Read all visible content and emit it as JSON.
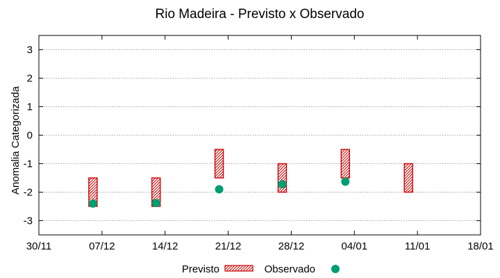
{
  "chart_data": {
    "type": "scatter",
    "title": "Rio Madeira - Previsto x Observado",
    "xlabel": "",
    "ylabel": "Anomalia Categorizada",
    "x_tick_labels": [
      "30/11",
      "07/12",
      "14/12",
      "21/12",
      "28/12",
      "04/01",
      "11/01",
      "18/01"
    ],
    "x_range_days": [
      0,
      49
    ],
    "y_ticks": [
      "3",
      "2",
      "1",
      "0",
      "-1",
      "-2",
      "-3"
    ],
    "y_tick_values": [
      3,
      2,
      1,
      0,
      -1,
      -2,
      -3
    ],
    "ylim": [
      -3.5,
      3.5
    ],
    "grid": true,
    "legend_position": "bottom-center",
    "series": [
      {
        "name": "Previsto",
        "kind": "range-box",
        "color": "#cc0000",
        "points": [
          {
            "x": 6,
            "low": -2.5,
            "high": -1.5
          },
          {
            "x": 13,
            "low": -2.5,
            "high": -1.5
          },
          {
            "x": 20,
            "low": -1.5,
            "high": -0.5
          },
          {
            "x": 27,
            "low": -2.0,
            "high": -1.0
          },
          {
            "x": 34,
            "low": -1.5,
            "high": -0.5
          },
          {
            "x": 41,
            "low": -2.0,
            "high": -1.0
          }
        ]
      },
      {
        "name": "Observado",
        "kind": "point",
        "color": "#009e73",
        "points": [
          {
            "x": 6,
            "y": -2.4
          },
          {
            "x": 13,
            "y": -2.38
          },
          {
            "x": 20,
            "y": -1.9
          },
          {
            "x": 27,
            "y": -1.72
          },
          {
            "x": 34,
            "y": -1.63
          }
        ]
      }
    ]
  }
}
